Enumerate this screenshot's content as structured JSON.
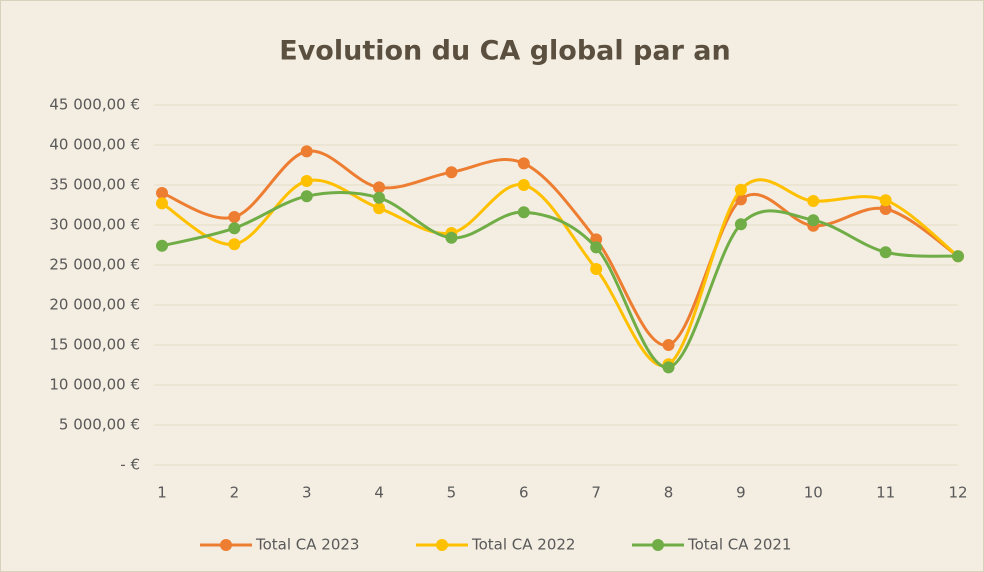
{
  "chart_data": {
    "type": "line",
    "title": "Evolution du CA global par an",
    "categories": [
      "1",
      "2",
      "3",
      "4",
      "5",
      "6",
      "7",
      "8",
      "9",
      "10",
      "11",
      "12"
    ],
    "series": [
      {
        "name": "Total CA 2023",
        "color": "#ed7d31",
        "values": [
          34000,
          31000,
          39200,
          34700,
          36600,
          37700,
          28200,
          15000,
          33200,
          29900,
          32000,
          26100
        ]
      },
      {
        "name": "Total CA 2022",
        "color": "#ffc000",
        "values": [
          32700,
          27600,
          35500,
          32100,
          29000,
          35000,
          24500,
          12600,
          34400,
          33000,
          33100,
          26100
        ]
      },
      {
        "name": "Total CA 2021",
        "color": "#70ad47",
        "values": [
          27400,
          29600,
          33600,
          33400,
          28400,
          31600,
          27200,
          12200,
          30100,
          30600,
          26600,
          26100
        ]
      }
    ],
    "ylim": [
      0,
      45000
    ],
    "yticks": [
      {
        "value": 0,
        "label": "-  €"
      },
      {
        "value": 5000,
        "label": "5 000,00 €"
      },
      {
        "value": 10000,
        "label": "10 000,00 €"
      },
      {
        "value": 15000,
        "label": "15 000,00 €"
      },
      {
        "value": 20000,
        "label": "20 000,00 €"
      },
      {
        "value": 25000,
        "label": "25 000,00 €"
      },
      {
        "value": 30000,
        "label": "30 000,00 €"
      },
      {
        "value": 35000,
        "label": "35 000,00 €"
      },
      {
        "value": 40000,
        "label": "40 000,00 €"
      },
      {
        "value": 45000,
        "label": "45 000,00 €"
      }
    ],
    "grid": true,
    "smooth": true,
    "legend": "bottom"
  }
}
